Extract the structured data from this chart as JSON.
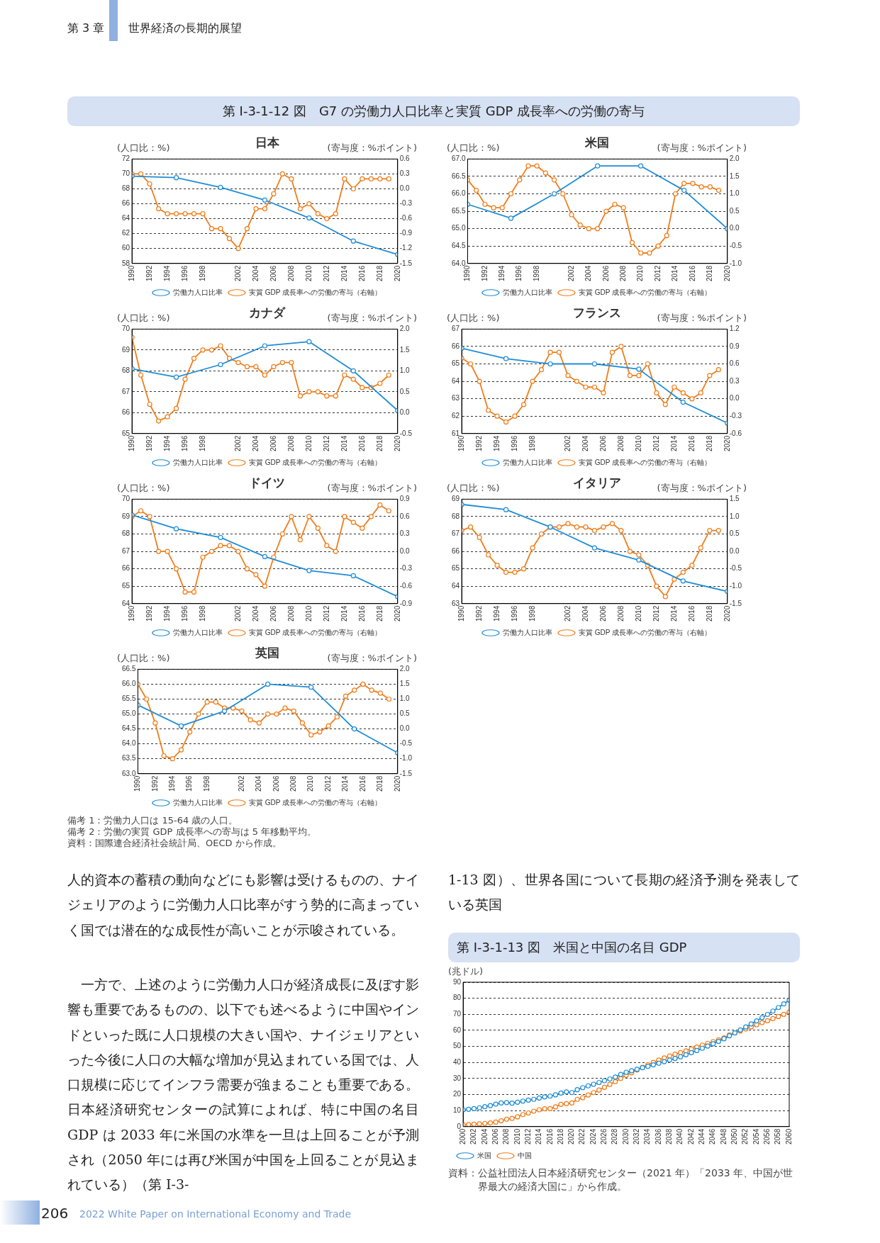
{
  "chart_data": [
    {
      "type": "other",
      "annotations": [
        "第 3 章",
        "世界経済の長期的展望"
      ]
    },
    {
      "type": "other",
      "title": "第 I-3-1-12 図　G7 の労働力人口比率と実質 GDP 成長率への労働の寄与"
    },
    {
      "type": "line",
      "title": "日本",
      "ylabel": "(人口比：%)",
      "y2label": "(寄与度：%ポイント)",
      "xlim": [
        1990,
        2020
      ],
      "xticks": [
        1990,
        1992,
        1994,
        1996,
        1998,
        2002,
        2004,
        2006,
        2008,
        2010,
        2012,
        2014,
        2016,
        2018,
        2020
      ],
      "ylim": [
        58,
        72
      ],
      "yticks": [
        58,
        60,
        62,
        64,
        66,
        68,
        70,
        72
      ],
      "y2lim": [
        -1.5,
        0.6
      ],
      "y2ticks": [
        -1.5,
        -1.2,
        -0.9,
        -0.6,
        -0.3,
        {
          "value": 0,
          "label": "0.0"
        },
        0.3,
        0.6
      ],
      "grid": "y",
      "legend": "bottom",
      "marker": "circle",
      "series": [
        {
          "name": "労働力人口比率",
          "color": "#1f8dd6",
          "x": [
            1990,
            1995,
            2000,
            2005,
            2010,
            2015,
            2020
          ],
          "values": [
            69.7,
            69.5,
            68.2,
            66.5,
            64.1,
            61.0,
            59.2
          ]
        },
        {
          "name": "実質 GDP 成長率への労働の寄与（右軸）",
          "color": "#f07d1a",
          "axis": "y2",
          "x": [
            1990,
            1991,
            1992,
            1993,
            1994,
            1995,
            1996,
            1997,
            1998,
            1999,
            2000,
            2001,
            2002,
            2003,
            2004,
            2005,
            2006,
            2007,
            2008,
            2009,
            2010,
            2011,
            2012,
            2013,
            2014,
            2015,
            2016,
            2017,
            2018,
            2019
          ],
          "values": [
            0.3,
            0.3,
            0.1,
            -0.4,
            -0.5,
            -0.5,
            -0.5,
            -0.5,
            -0.5,
            -0.8,
            -0.8,
            -1.0,
            -1.2,
            -0.8,
            -0.4,
            -0.4,
            -0.1,
            0.3,
            0.2,
            -0.4,
            -0.3,
            -0.5,
            -0.6,
            -0.5,
            0.2,
            0.0,
            0.2,
            0.2,
            0.2,
            0.2
          ]
        }
      ]
    },
    {
      "type": "line",
      "title": "米国",
      "ylabel": "(人口比：%)",
      "y2label": "(寄与度：%ポイント)",
      "xlim": [
        1990,
        2020
      ],
      "xticks": [
        1990,
        1992,
        1994,
        1996,
        1998,
        2002,
        2004,
        2006,
        2008,
        2010,
        2012,
        2014,
        2016,
        2018,
        2020
      ],
      "ylim": [
        64,
        67
      ],
      "yticks": [
        {
          "value": 64,
          "label": "64.0"
        },
        64.5,
        {
          "value": 65,
          "label": "65.0"
        },
        65.5,
        {
          "value": 66,
          "label": "66.0"
        },
        66.5,
        {
          "value": 67,
          "label": "67.0"
        }
      ],
      "y2lim": [
        -1,
        2
      ],
      "y2ticks": [
        {
          "value": -1,
          "label": "-1.0"
        },
        -0.5,
        {
          "value": 0,
          "label": "0.0"
        },
        0.5,
        {
          "value": 1,
          "label": "1.0"
        },
        1.5,
        {
          "value": 2,
          "label": "2.0"
        }
      ],
      "grid": "y",
      "legend": "bottom",
      "marker": "circle",
      "series": [
        {
          "name": "労働力人口比率",
          "color": "#1f8dd6",
          "x": [
            1990,
            1995,
            2000,
            2005,
            2010,
            2015,
            2020
          ],
          "values": [
            65.7,
            65.3,
            66.0,
            66.8,
            66.8,
            66.1,
            65.0
          ]
        },
        {
          "name": "実質 GDP 成長率への労働の寄与（右軸）",
          "color": "#f07d1a",
          "axis": "y2",
          "x": [
            1990,
            1991,
            1992,
            1993,
            1994,
            1995,
            1996,
            1997,
            1998,
            1999,
            2000,
            2001,
            2002,
            2003,
            2004,
            2005,
            2006,
            2007,
            2008,
            2009,
            2010,
            2011,
            2012,
            2013,
            2014,
            2015,
            2016,
            2017,
            2018,
            2019
          ],
          "values": [
            1.4,
            1.1,
            0.7,
            0.6,
            0.6,
            1.0,
            1.4,
            1.8,
            1.8,
            1.6,
            1.4,
            1.0,
            0.4,
            0.1,
            0.0,
            0.0,
            0.5,
            0.7,
            0.6,
            -0.4,
            -0.7,
            -0.7,
            -0.5,
            -0.2,
            1.0,
            1.3,
            1.3,
            1.2,
            1.2,
            1.1
          ]
        }
      ]
    },
    {
      "type": "line",
      "title": "カナダ",
      "ylabel": "(人口比：%)",
      "y2label": "(寄与度：%ポイント)",
      "xlim": [
        1990,
        2020
      ],
      "xticks": [
        1990,
        1992,
        1994,
        1996,
        1998,
        2002,
        2004,
        2006,
        2008,
        2010,
        2012,
        2014,
        2016,
        2018,
        2020
      ],
      "ylim": [
        65,
        70
      ],
      "yticks": [
        65,
        66,
        67,
        68,
        69,
        70
      ],
      "y2lim": [
        -0.5,
        2
      ],
      "y2ticks": [
        -0.5,
        {
          "value": 0,
          "label": "0.0"
        },
        0.5,
        {
          "value": 1,
          "label": "1.0"
        },
        1.5,
        {
          "value": 2,
          "label": "2.0"
        }
      ],
      "grid": "y",
      "legend": "bottom",
      "marker": "circle",
      "series": [
        {
          "name": "労働力人口比率",
          "color": "#1f8dd6",
          "x": [
            1990,
            1995,
            2000,
            2005,
            2010,
            2015,
            2020
          ],
          "values": [
            68.1,
            67.7,
            68.3,
            69.2,
            69.4,
            68.0,
            66.1
          ]
        },
        {
          "name": "実質 GDP 成長率への労働の寄与（右軸）",
          "color": "#f07d1a",
          "axis": "y2",
          "x": [
            1990,
            1991,
            1992,
            1993,
            1994,
            1995,
            1996,
            1997,
            1998,
            1999,
            2000,
            2001,
            2002,
            2003,
            2004,
            2005,
            2006,
            2007,
            2008,
            2009,
            2010,
            2011,
            2012,
            2013,
            2014,
            2015,
            2016,
            2017,
            2018,
            2019
          ],
          "values": [
            1.8,
            0.9,
            0.2,
            -0.2,
            -0.1,
            0.1,
            0.8,
            1.3,
            1.5,
            1.5,
            1.6,
            1.3,
            1.2,
            1.1,
            1.1,
            0.9,
            1.1,
            1.2,
            1.2,
            0.4,
            0.5,
            0.5,
            0.4,
            0.4,
            0.9,
            0.8,
            0.6,
            0.6,
            0.7,
            0.9
          ]
        }
      ]
    },
    {
      "type": "line",
      "title": "フランス",
      "ylabel": "(人口比：%)",
      "y2label": "(寄与度：%ポイント)",
      "xlim": [
        1990,
        2020
      ],
      "xticks": [
        1990,
        1992,
        1994,
        1996,
        1998,
        2002,
        2004,
        2006,
        2008,
        2010,
        2012,
        2014,
        2016,
        2018,
        2020
      ],
      "ylim": [
        61,
        67
      ],
      "yticks": [
        61,
        62,
        63,
        64,
        65,
        66,
        67
      ],
      "y2lim": [
        -0.6,
        1.2
      ],
      "y2ticks": [
        -0.6,
        -0.3,
        {
          "value": 0,
          "label": "0.0"
        },
        0.3,
        0.6,
        0.9,
        1.2
      ],
      "grid": "y",
      "legend": "bottom",
      "marker": "circle",
      "series": [
        {
          "name": "労働力人口比率",
          "color": "#1f8dd6",
          "x": [
            1990,
            1995,
            2000,
            2005,
            2010,
            2015,
            2020
          ],
          "values": [
            65.9,
            65.3,
            65.0,
            65.0,
            64.7,
            62.8,
            61.6
          ]
        },
        {
          "name": "実質 GDP 成長率への労働の寄与（右軸）",
          "color": "#f07d1a",
          "axis": "y2",
          "x": [
            1990,
            1991,
            1992,
            1993,
            1994,
            1995,
            1996,
            1997,
            1998,
            1999,
            2000,
            2001,
            2002,
            2003,
            2004,
            2005,
            2006,
            2007,
            2008,
            2009,
            2010,
            2011,
            2012,
            2013,
            2014,
            2015,
            2016,
            2017,
            2018,
            2019
          ],
          "values": [
            0.7,
            0.6,
            0.3,
            -0.2,
            -0.3,
            -0.4,
            -0.3,
            -0.1,
            0.3,
            0.5,
            0.8,
            0.8,
            0.4,
            0.3,
            0.2,
            0.2,
            0.1,
            0.8,
            0.9,
            0.4,
            0.4,
            0.6,
            0.1,
            -0.1,
            0.2,
            0.1,
            0.0,
            0.1,
            0.4,
            0.5
          ]
        }
      ]
    },
    {
      "type": "line",
      "title": "ドイツ",
      "ylabel": "(人口比：%)",
      "y2label": "(寄与度：%ポイント)",
      "xlim": [
        1990,
        2020
      ],
      "xticks": [
        1990,
        1992,
        1994,
        1996,
        1998,
        2002,
        2004,
        2006,
        2008,
        2010,
        2012,
        2014,
        2016,
        2018,
        2020
      ],
      "ylim": [
        64,
        70
      ],
      "yticks": [
        64,
        65,
        66,
        67,
        68,
        69,
        70
      ],
      "y2lim": [
        -0.9,
        0.9
      ],
      "y2ticks": [
        -0.9,
        -0.6,
        -0.3,
        {
          "value": 0,
          "label": "0.0"
        },
        0.3,
        0.6,
        0.9
      ],
      "grid": "y",
      "legend": "bottom",
      "marker": "circle",
      "series": [
        {
          "name": "労働力人口比率",
          "color": "#1f8dd6",
          "x": [
            1990,
            1995,
            2000,
            2005,
            2010,
            2015,
            2020
          ],
          "values": [
            69.1,
            68.3,
            67.8,
            66.7,
            65.9,
            65.6,
            64.4
          ]
        },
        {
          "name": "実質 GDP 成長率への労働の寄与（右軸）",
          "color": "#f07d1a",
          "axis": "y2",
          "x": [
            1990,
            1991,
            1992,
            1993,
            1994,
            1995,
            1996,
            1997,
            1998,
            1999,
            2000,
            2001,
            2002,
            2003,
            2004,
            2005,
            2006,
            2007,
            2008,
            2009,
            2010,
            2011,
            2012,
            2013,
            2014,
            2015,
            2016,
            2017,
            2018,
            2019
          ],
          "values": [
            0.6,
            0.7,
            0.6,
            0.0,
            0.0,
            -0.3,
            -0.7,
            -0.7,
            -0.1,
            0.0,
            0.1,
            0.1,
            0.0,
            -0.3,
            -0.4,
            -0.6,
            -0.1,
            0.3,
            0.6,
            0.2,
            0.6,
            0.4,
            0.1,
            0.0,
            0.6,
            0.5,
            0.4,
            0.6,
            0.8,
            0.7
          ]
        }
      ]
    },
    {
      "type": "line",
      "title": "イタリア",
      "ylabel": "(人口比：%)",
      "y2label": "(寄与度：%ポイント)",
      "xlim": [
        1990,
        2020
      ],
      "xticks": [
        1990,
        1992,
        1994,
        1996,
        1998,
        2002,
        2004,
        2006,
        2008,
        2010,
        2012,
        2014,
        2016,
        2018,
        2020
      ],
      "ylim": [
        63,
        69
      ],
      "yticks": [
        63,
        64,
        65,
        66,
        67,
        68,
        69
      ],
      "y2lim": [
        -1.5,
        1.5
      ],
      "y2ticks": [
        -1.5,
        {
          "value": -1,
          "label": "-1.0"
        },
        -0.5,
        {
          "value": 0,
          "label": "0.0"
        },
        0.5,
        {
          "value": 1,
          "label": "1.0"
        },
        1.5
      ],
      "grid": "y",
      "legend": "bottom",
      "marker": "circle",
      "series": [
        {
          "name": "労働力人口比率",
          "color": "#1f8dd6",
          "x": [
            1990,
            1995,
            2000,
            2005,
            2010,
            2015,
            2020
          ],
          "values": [
            68.7,
            68.4,
            67.4,
            66.2,
            65.5,
            64.3,
            63.7
          ]
        },
        {
          "name": "実質 GDP 成長率への労働の寄与（右軸）",
          "color": "#f07d1a",
          "axis": "y2",
          "x": [
            1990,
            1991,
            1992,
            1993,
            1994,
            1995,
            1996,
            1997,
            1998,
            1999,
            2000,
            2001,
            2002,
            2003,
            2004,
            2005,
            2006,
            2007,
            2008,
            2009,
            2010,
            2011,
            2012,
            2013,
            2014,
            2015,
            2016,
            2017,
            2018,
            2019
          ],
          "values": [
            0.6,
            0.7,
            0.4,
            -0.1,
            -0.4,
            -0.6,
            -0.6,
            -0.5,
            0.1,
            0.5,
            0.7,
            0.7,
            0.8,
            0.7,
            0.7,
            0.6,
            0.7,
            0.8,
            0.6,
            0.0,
            -0.1,
            -0.4,
            -1.0,
            -1.3,
            -0.8,
            -0.6,
            -0.4,
            0.1,
            0.6,
            0.6
          ]
        }
      ]
    },
    {
      "type": "line",
      "title": "英国",
      "ylabel": "(人口比：%)",
      "y2label": "(寄与度：%ポイント)",
      "xlim": [
        1990,
        2020
      ],
      "xticks": [
        1990,
        1992,
        1994,
        1996,
        1998,
        2002,
        2004,
        2006,
        2008,
        2010,
        2012,
        2014,
        2016,
        2018,
        2020
      ],
      "ylim": [
        63,
        66.5
      ],
      "yticks": [
        {
          "value": 63,
          "label": "63.0"
        },
        63.5,
        {
          "value": 64,
          "label": "64.0"
        },
        64.5,
        {
          "value": 65,
          "label": "65.0"
        },
        65.5,
        {
          "value": 66,
          "label": "66.0"
        },
        66.5
      ],
      "y2lim": [
        -1.5,
        2
      ],
      "y2ticks": [
        -1.5,
        {
          "value": -1,
          "label": "-1.0"
        },
        -0.5,
        {
          "value": 0,
          "label": "0.0"
        },
        0.5,
        {
          "value": 1,
          "label": "1.0"
        },
        1.5,
        {
          "value": 2,
          "label": "2.0"
        }
      ],
      "grid": "y",
      "legend": "bottom",
      "marker": "circle",
      "series": [
        {
          "name": "労働力人口比率",
          "color": "#1f8dd6",
          "x": [
            1990,
            1995,
            2000,
            2005,
            2010,
            2015,
            2020
          ],
          "values": [
            65.3,
            64.6,
            65.1,
            66.0,
            65.9,
            64.5,
            63.7
          ]
        },
        {
          "name": "実質 GDP 成長率への労働の寄与（右軸）",
          "color": "#f07d1a",
          "axis": "y2",
          "x": [
            1990,
            1991,
            1992,
            1993,
            1994,
            1995,
            1996,
            1997,
            1998,
            1999,
            2000,
            2001,
            2002,
            2003,
            2004,
            2005,
            2006,
            2007,
            2008,
            2009,
            2010,
            2011,
            2012,
            2013,
            2014,
            2015,
            2016,
            2017,
            2018,
            2019
          ],
          "values": [
            1.5,
            1.0,
            0.2,
            -0.9,
            -1.0,
            -0.7,
            -0.1,
            0.5,
            0.9,
            0.9,
            0.7,
            0.7,
            0.6,
            0.3,
            0.2,
            0.5,
            0.5,
            0.7,
            0.6,
            0.2,
            -0.2,
            -0.1,
            0.1,
            0.4,
            1.1,
            1.3,
            1.5,
            1.3,
            1.2,
            1.0
          ]
        }
      ]
    },
    {
      "type": "other",
      "annotations": [
        "備考 1：労働力人口は 15-64 歳の人口。",
        "備考 2：労働の実質 GDP 成長率への寄与は 5 年移動平均。",
        "資料：国際連合経済社会統計局、OECD から作成。"
      ]
    },
    {
      "type": "other",
      "annotations": [
        "人的資本の蓄積の動向などにも影響は受けるものの、ナイジェリアのように労働力人口比率がすう勢的に高まっていく国では潜在的な成長性が高いことが示唆されている。",
        "　一方で、上述のように労働力人口が経済成長に及ぼす影響も重要であるものの、以下でも述べるように中国やインドといった既に人口規模の大きい国や、ナイジェリアといった今後に人口の大幅な増加が見込まれている国では、人口規模に応じてインフラ需要が強まることも重要である。日本経済研究センターの試算によれば、特に中国の名目 GDP は 2033 年に米国の水準を一旦は上回ることが予測され（2050 年には再び米国が中国を上回ることが見込まれている）（第 I-3-",
        "1-13 図）、世界各国について長期の経済予測を発表している英国"
      ]
    },
    {
      "type": "line",
      "title": "第 I-3-1-13 図　米国と中国の名目 GDP",
      "ylabel": "(兆ドル)",
      "annotations": [
        "資料：公益社団法人日本経済研究センター（2021 年）「2033 年、中国が世界最大の経済大国に」から作成。"
      ],
      "xlim": [
        2000,
        2060
      ],
      "xticks": [
        2000,
        2002,
        2004,
        2006,
        2008,
        2010,
        2012,
        2014,
        2016,
        2018,
        2020,
        2022,
        2024,
        2026,
        2028,
        2030,
        2032,
        2034,
        2036,
        2038,
        2040,
        2042,
        2044,
        2046,
        2048,
        2050,
        2052,
        2054,
        2056,
        2058,
        2060
      ],
      "ylim": [
        0,
        90
      ],
      "yticks": [
        0,
        10,
        20,
        30,
        40,
        50,
        60,
        70,
        80,
        90
      ],
      "grid": "y",
      "legend": "bottom left",
      "marker": "circle",
      "x": [
        2000,
        2001,
        2002,
        2003,
        2004,
        2005,
        2006,
        2007,
        2008,
        2009,
        2010,
        2011,
        2012,
        2013,
        2014,
        2015,
        2016,
        2017,
        2018,
        2019,
        2020,
        2021,
        2022,
        2023,
        2024,
        2025,
        2026,
        2027,
        2028,
        2029,
        2030,
        2031,
        2032,
        2033,
        2034,
        2035,
        2036,
        2037,
        2038,
        2039,
        2040,
        2041,
        2042,
        2043,
        2044,
        2045,
        2046,
        2047,
        2048,
        2049,
        2050,
        2051,
        2052,
        2053,
        2054,
        2055,
        2056,
        2057,
        2058,
        2059,
        2060
      ],
      "series": [
        {
          "name": "米国",
          "color": "#1f8dd6",
          "values": [
            10.5,
            10.8,
            11.2,
            11.7,
            12.4,
            13.1,
            14.0,
            14.7,
            15.0,
            14.6,
            15.2,
            15.9,
            16.5,
            17.0,
            17.8,
            18.5,
            19.0,
            19.8,
            20.9,
            21.6,
            21.2,
            23.0,
            24.3,
            25.4,
            26.4,
            27.5,
            28.6,
            29.7,
            30.9,
            32.5,
            33.9,
            34.8,
            35.7,
            36.7,
            37.6,
            38.5,
            39.5,
            40.5,
            41.5,
            42.5,
            43.5,
            44.8,
            46.1,
            47.4,
            48.8,
            50.2,
            51.6,
            53.1,
            54.8,
            56.6,
            58.4,
            60.2,
            62.1,
            64.0,
            65.9,
            67.9,
            69.9,
            72.0,
            74.2,
            76.5,
            78.8
          ]
        },
        {
          "name": "中国",
          "color": "#f07d1a",
          "values": [
            1.2,
            1.3,
            1.5,
            1.7,
            2.0,
            2.3,
            2.8,
            3.6,
            4.6,
            5.1,
            6.1,
            7.5,
            8.5,
            9.6,
            10.5,
            11.1,
            11.2,
            12.3,
            13.9,
            14.3,
            14.7,
            17.0,
            18.0,
            19.7,
            21.2,
            22.8,
            24.5,
            26.3,
            28.0,
            30.0,
            32.0,
            33.6,
            35.3,
            37.0,
            38.6,
            40.0,
            41.5,
            42.8,
            44.0,
            45.1,
            46.1,
            47.2,
            48.4,
            49.6,
            50.8,
            51.9,
            53.0,
            54.1,
            55.3,
            57.2,
            58.4,
            59.6,
            60.9,
            62.2,
            63.5,
            64.8,
            66.0,
            67.3,
            68.6,
            70.0,
            71.4
          ]
        }
      ]
    },
    {
      "type": "other",
      "annotations": [
        "206",
        "2022 White Paper on International Economy and Trade"
      ]
    }
  ]
}
